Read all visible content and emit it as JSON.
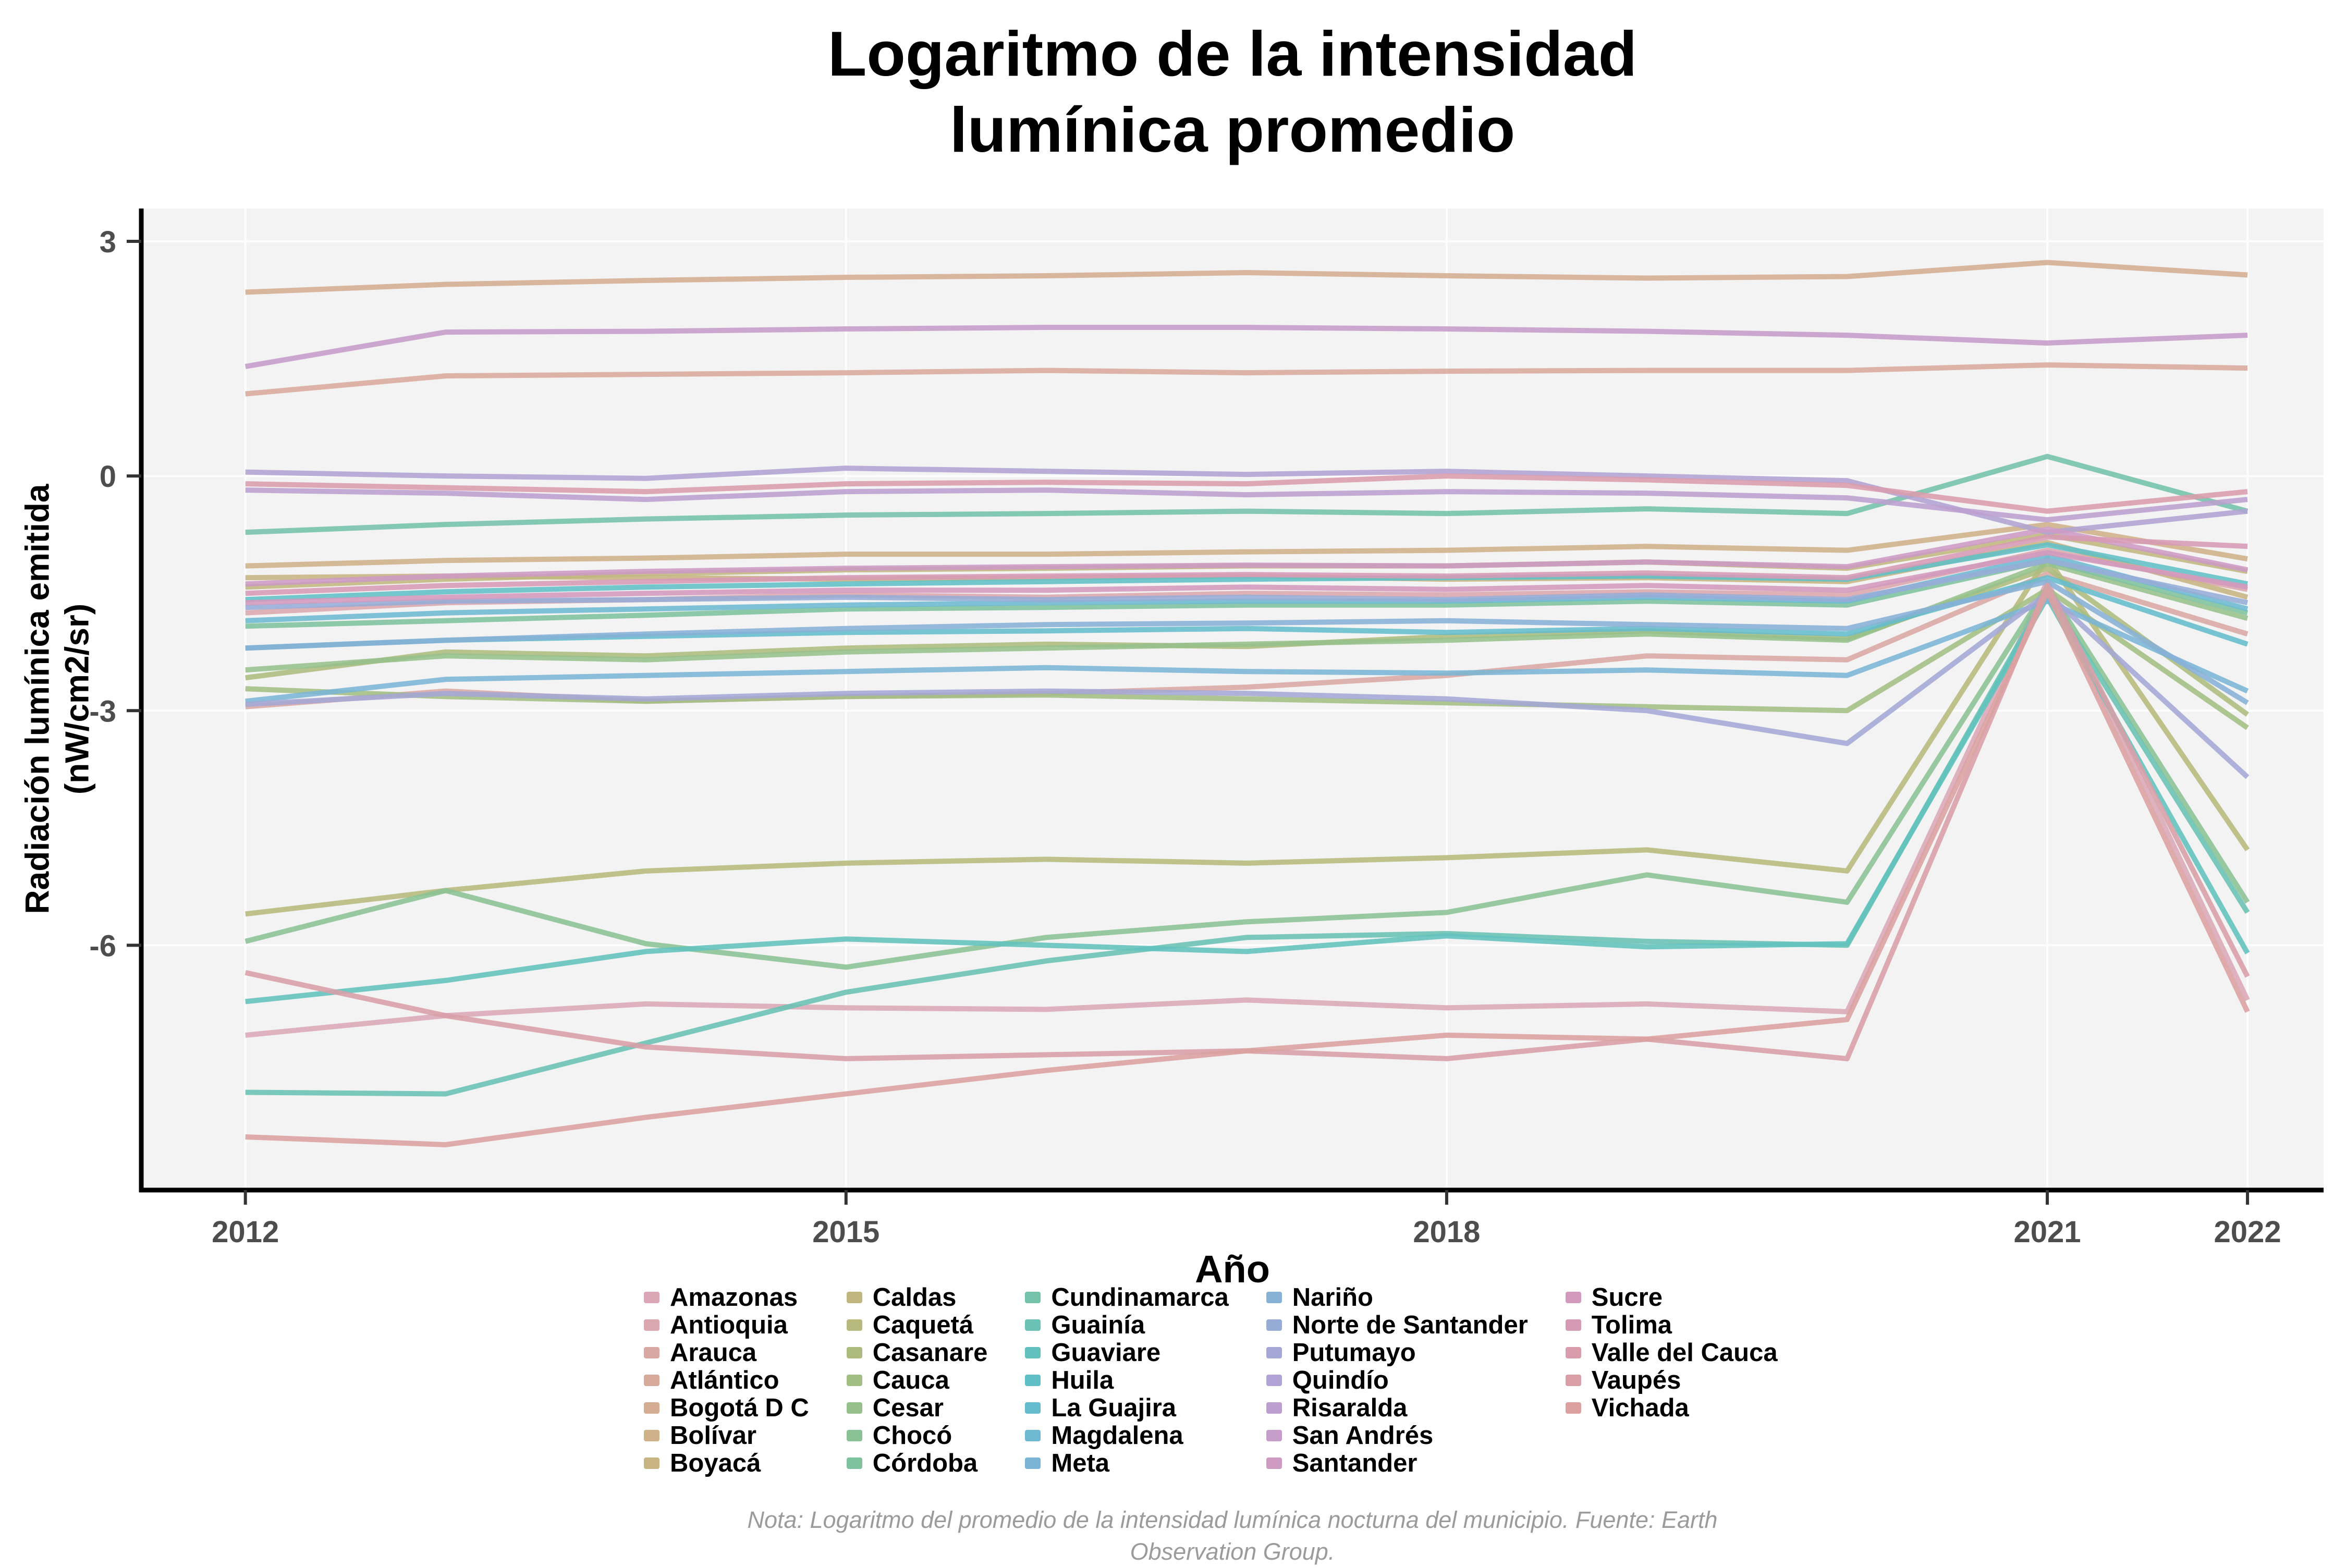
{
  "title": "Logaritmo de la intensidad\nlumínica promedio",
  "y_axis": {
    "label": "Radiación lumínica emitida\n(nW/cm2/sr)"
  },
  "x_axis": {
    "label": "Año"
  },
  "caption": "Nota: Logaritmo del promedio de la intensidad lumínica nocturna del municipio. Fuente: Earth\nObservation Group.",
  "colors": {
    "panel_bg": "#f4f3f3",
    "grid": "#fdfdfd",
    "axis": "#000000",
    "tick_text": "#4d4d4d",
    "title_text": "#000000",
    "caption_text": "#9b9b9b"
  },
  "chart_data": {
    "type": "line",
    "title": "Logaritmo de la intensidad lumínica promedio",
    "xlabel": "Año",
    "ylabel": "Radiación lumínica emitida (nW/cm2/sr)",
    "legend_position": "bottom",
    "grid": "major",
    "x": [
      2012,
      2013,
      2014,
      2015,
      2016,
      2017,
      2018,
      2019,
      2020,
      2021,
      2022
    ],
    "x_ticks": [
      2012,
      2015,
      2018,
      2021,
      2022
    ],
    "y_ticks": [
      3,
      0,
      -3,
      -6
    ],
    "xlim": [
      2011.48,
      2022.38
    ],
    "ylim": [
      -9.13,
      3.42
    ],
    "series": [
      {
        "name": "Amazonas",
        "color": "#DBA7B6",
        "values": [
          -7.15,
          -6.9,
          -6.75,
          -6.8,
          -6.82,
          -6.7,
          -6.8,
          -6.75,
          -6.85,
          -1.35,
          -6.7
        ]
      },
      {
        "name": "Antioquia",
        "color": "#DBA7AE",
        "values": [
          -1.75,
          -1.62,
          -1.58,
          -1.52,
          -1.55,
          -1.5,
          -1.52,
          -1.48,
          -1.52,
          -0.95,
          -1.45
        ]
      },
      {
        "name": "Arauca",
        "color": "#DAA8A4",
        "values": [
          -2.95,
          -2.75,
          -2.88,
          -2.82,
          -2.78,
          -2.7,
          -2.55,
          -2.3,
          -2.35,
          -1.25,
          -2.02
        ]
      },
      {
        "name": "Atlántico",
        "color": "#D8AA9B",
        "values": [
          1.05,
          1.28,
          1.3,
          1.32,
          1.35,
          1.32,
          1.34,
          1.35,
          1.35,
          1.42,
          1.38
        ]
      },
      {
        "name": "Bogotá D C",
        "color": "#D4AD92",
        "values": [
          2.35,
          2.45,
          2.5,
          2.54,
          2.56,
          2.6,
          2.56,
          2.53,
          2.55,
          2.73,
          2.57
        ]
      },
      {
        "name": "Bolívar",
        "color": "#CFB18A",
        "values": [
          -1.15,
          -1.08,
          -1.05,
          -1.0,
          -1.0,
          -0.97,
          -0.95,
          -0.9,
          -0.95,
          -0.62,
          -1.06
        ]
      },
      {
        "name": "Boyacá",
        "color": "#C8B483",
        "values": [
          -1.3,
          -1.28,
          -1.3,
          -1.32,
          -1.3,
          -1.28,
          -1.32,
          -1.3,
          -1.35,
          -0.85,
          -1.55
        ]
      },
      {
        "name": "Caldas",
        "color": "#C0B77E",
        "values": [
          -1.42,
          -1.32,
          -1.25,
          -1.2,
          -1.18,
          -1.15,
          -1.15,
          -1.1,
          -1.18,
          -0.75,
          -1.22
        ]
      },
      {
        "name": "Caquetá",
        "color": "#B7BA7C",
        "values": [
          -5.6,
          -5.3,
          -5.05,
          -4.95,
          -4.9,
          -4.95,
          -4.88,
          -4.78,
          -5.05,
          -1.05,
          -4.78
        ]
      },
      {
        "name": "Casanare",
        "color": "#ADBC7E",
        "values": [
          -2.58,
          -2.25,
          -2.3,
          -2.2,
          -2.15,
          -2.18,
          -2.05,
          -1.98,
          -2.08,
          -1.18,
          -3.05
        ]
      },
      {
        "name": "Cauca",
        "color": "#A2BE83",
        "values": [
          -2.72,
          -2.82,
          -2.88,
          -2.82,
          -2.8,
          -2.85,
          -2.9,
          -2.95,
          -3.0,
          -1.45,
          -3.22
        ]
      },
      {
        "name": "Cesar",
        "color": "#96C08B",
        "values": [
          -2.48,
          -2.3,
          -2.35,
          -2.25,
          -2.2,
          -2.15,
          -2.1,
          -2.02,
          -2.1,
          -1.12,
          -1.82
        ]
      },
      {
        "name": "Chocó",
        "color": "#8AC194",
        "values": [
          -5.95,
          -5.3,
          -5.98,
          -6.28,
          -5.9,
          -5.7,
          -5.58,
          -5.1,
          -5.45,
          -1.42,
          -5.45
        ]
      },
      {
        "name": "Córdoba",
        "color": "#7EC29E",
        "values": [
          -1.92,
          -1.85,
          -1.78,
          -1.7,
          -1.68,
          -1.65,
          -1.65,
          -1.6,
          -1.65,
          -1.08,
          -1.75
        ]
      },
      {
        "name": "Cundinamarca",
        "color": "#73C2A9",
        "values": [
          -0.72,
          -0.62,
          -0.55,
          -0.5,
          -0.48,
          -0.45,
          -0.48,
          -0.42,
          -0.48,
          0.25,
          -0.45
        ]
      },
      {
        "name": "Guainía",
        "color": "#69C2B3",
        "values": [
          -7.88,
          -7.9,
          -7.25,
          -6.6,
          -6.2,
          -5.9,
          -5.85,
          -5.95,
          -6.0,
          -1.5,
          -5.58
        ]
      },
      {
        "name": "Guaviare",
        "color": "#62C1BD",
        "values": [
          -6.72,
          -6.45,
          -6.08,
          -5.92,
          -6.0,
          -6.08,
          -5.88,
          -6.02,
          -5.98,
          -1.55,
          -6.1
        ]
      },
      {
        "name": "Huila",
        "color": "#60BFC6",
        "values": [
          -1.58,
          -1.48,
          -1.42,
          -1.38,
          -1.35,
          -1.32,
          -1.3,
          -1.28,
          -1.32,
          -0.88,
          -1.38
        ]
      },
      {
        "name": "La Guajira",
        "color": "#64BCCD",
        "values": [
          -2.2,
          -2.1,
          -2.05,
          -2.0,
          -1.98,
          -1.95,
          -2.0,
          -1.95,
          -2.02,
          -1.3,
          -2.15
        ]
      },
      {
        "name": "Magdalena",
        "color": "#6DB9D2",
        "values": [
          -1.85,
          -1.75,
          -1.7,
          -1.65,
          -1.62,
          -1.6,
          -1.6,
          -1.55,
          -1.6,
          -1.02,
          -1.7
        ]
      },
      {
        "name": "Meta",
        "color": "#7AB5D5",
        "values": [
          -2.88,
          -2.6,
          -2.55,
          -2.5,
          -2.45,
          -2.5,
          -2.52,
          -2.48,
          -2.55,
          -1.6,
          -2.75
        ]
      },
      {
        "name": "Nariño",
        "color": "#88B1D6",
        "values": [
          -2.2,
          -2.1,
          -2.02,
          -1.95,
          -1.9,
          -1.88,
          -1.85,
          -1.9,
          -1.95,
          -1.35,
          -2.9
        ]
      },
      {
        "name": "Norte de Santander",
        "color": "#96ACD7",
        "values": [
          -1.68,
          -1.6,
          -1.58,
          -1.55,
          -1.58,
          -1.55,
          -1.58,
          -1.52,
          -1.58,
          -1.08,
          -1.62
        ]
      },
      {
        "name": "Putumayo",
        "color": "#A4A7D5",
        "values": [
          -2.92,
          -2.78,
          -2.85,
          -2.78,
          -2.75,
          -2.78,
          -2.85,
          -3.0,
          -3.42,
          -1.5,
          -3.85
        ]
      },
      {
        "name": "Quindío",
        "color": "#B1A3D3",
        "values": [
          0.05,
          0.0,
          -0.03,
          0.1,
          0.06,
          0.02,
          0.06,
          0.0,
          -0.06,
          -0.72,
          -0.45
        ]
      },
      {
        "name": "Risaralda",
        "color": "#BC9FCF",
        "values": [
          -0.18,
          -0.22,
          -0.3,
          -0.2,
          -0.18,
          -0.24,
          -0.2,
          -0.22,
          -0.28,
          -0.56,
          -0.3
        ]
      },
      {
        "name": "San Andrés",
        "color": "#C59CCA",
        "values": [
          1.4,
          1.84,
          1.85,
          1.88,
          1.9,
          1.9,
          1.88,
          1.85,
          1.8,
          1.7,
          1.8
        ]
      },
      {
        "name": "Santander",
        "color": "#CD9AC4",
        "values": [
          -1.38,
          -1.28,
          -1.22,
          -1.18,
          -1.16,
          -1.14,
          -1.15,
          -1.1,
          -1.16,
          -0.68,
          -1.2
        ]
      },
      {
        "name": "Sucre",
        "color": "#D399BD",
        "values": [
          -1.62,
          -1.55,
          -1.5,
          -1.46,
          -1.46,
          -1.42,
          -1.45,
          -1.4,
          -1.46,
          -0.98,
          -1.42
        ]
      },
      {
        "name": "Tolima",
        "color": "#D79AB5",
        "values": [
          -1.5,
          -1.4,
          -1.35,
          -1.3,
          -1.28,
          -1.26,
          -1.28,
          -1.24,
          -1.3,
          -0.78,
          -0.9
        ]
      },
      {
        "name": "Valle del Cauca",
        "color": "#D99CAD",
        "values": [
          -0.1,
          -0.15,
          -0.2,
          -0.1,
          -0.08,
          -0.1,
          0.0,
          -0.05,
          -0.12,
          -0.45,
          -0.2
        ]
      },
      {
        "name": "Vaupés",
        "color": "#DA9EA7",
        "values": [
          -6.35,
          -6.9,
          -7.3,
          -7.45,
          -7.4,
          -7.35,
          -7.45,
          -7.2,
          -7.45,
          -1.4,
          -6.4
        ]
      },
      {
        "name": "Vichada",
        "color": "#DBA09F",
        "values": [
          -8.45,
          -8.55,
          -8.2,
          -7.9,
          -7.6,
          -7.35,
          -7.15,
          -7.2,
          -6.95,
          -1.48,
          -6.85
        ]
      }
    ]
  }
}
